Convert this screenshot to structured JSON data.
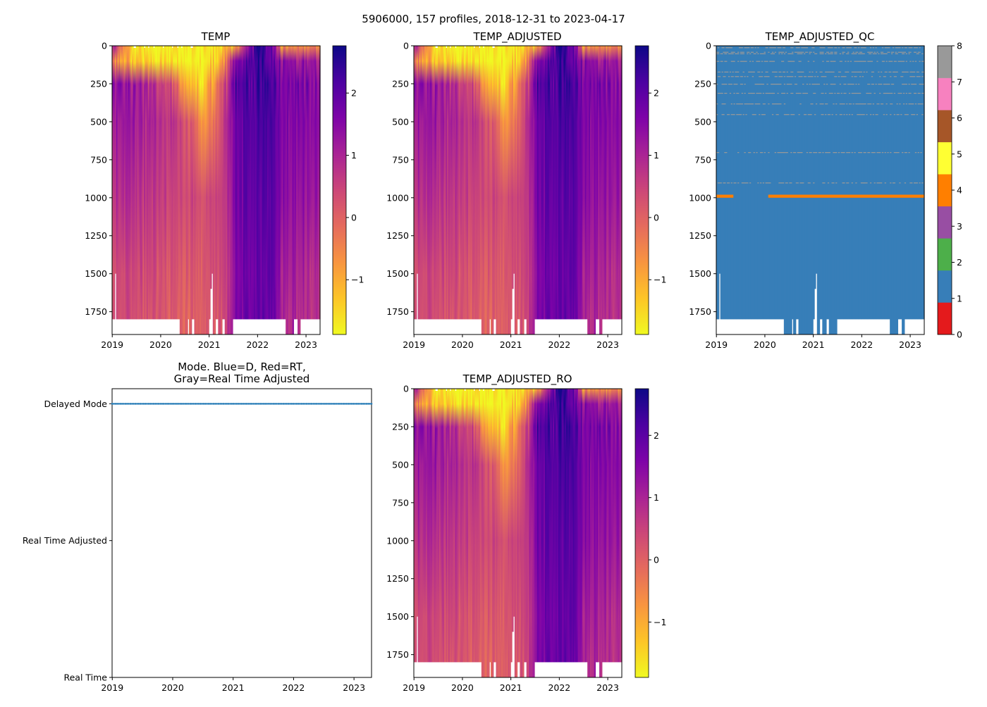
{
  "suptitle": "5906000, 157 profiles, 2018-12-31 to 2023-04-17",
  "chart_data": [
    {
      "type": "heatmap",
      "id": "temp",
      "title": "TEMP",
      "x_range": [
        2018.997,
        2023.29
      ],
      "xticks": [
        "2019",
        "2020",
        "2021",
        "2022",
        "2023"
      ],
      "y_range": [
        1900,
        0
      ],
      "yticks": [
        "0",
        "250",
        "500",
        "750",
        "1000",
        "1250",
        "1500",
        "1750"
      ],
      "colormap": "plasma_r",
      "clim": [
        -1.88,
        2.76
      ],
      "colorbar_ticks": [
        "2",
        "1",
        "0",
        "−1"
      ],
      "colorbar_tick_values": [
        2,
        1,
        0,
        -1
      ]
    },
    {
      "type": "heatmap",
      "id": "temp_adjusted",
      "title": "TEMP_ADJUSTED",
      "x_range": [
        2018.997,
        2023.29
      ],
      "xticks": [
        "2019",
        "2020",
        "2021",
        "2022",
        "2023"
      ],
      "y_range": [
        1900,
        0
      ],
      "yticks": [
        "0",
        "250",
        "500",
        "750",
        "1000",
        "1250",
        "1500",
        "1750"
      ],
      "colormap": "plasma_r",
      "clim": [
        -1.88,
        2.76
      ],
      "colorbar_ticks": [
        "2",
        "1",
        "0",
        "−1"
      ],
      "colorbar_tick_values": [
        2,
        1,
        0,
        -1
      ]
    },
    {
      "type": "heatmap",
      "id": "temp_adjusted_qc",
      "title": "TEMP_ADJUSTED_QC",
      "x_range": [
        2018.997,
        2023.29
      ],
      "xticks": [
        "2019",
        "2020",
        "2021",
        "2022",
        "2023"
      ],
      "y_range": [
        1900,
        0
      ],
      "yticks": [
        "0",
        "250",
        "500",
        "750",
        "1000",
        "1250",
        "1500",
        "1750"
      ],
      "clim": [
        0,
        8
      ],
      "colorbar_ticks": [
        "0",
        "1",
        "2",
        "3",
        "4",
        "5",
        "6",
        "7",
        "8"
      ],
      "qc_colors": [
        "#e41a1c",
        "#377eb8",
        "#4daf4a",
        "#984ea3",
        "#ff7f00",
        "#ffff33",
        "#a65628",
        "#f781bf",
        "#999999"
      ],
      "base_flag": 1,
      "flag4_band": {
        "depth": [
          980,
          1000
        ],
        "date_ranges": [
          [
            2018.997,
            2019.35
          ],
          [
            2020.07,
            2023.29
          ]
        ]
      },
      "flag8_sparse_depths": [
        10,
        40,
        50,
        100,
        170,
        200,
        250,
        310,
        380,
        450,
        700,
        900
      ]
    },
    {
      "type": "scatter",
      "id": "mode",
      "title": "Mode. Blue=D, Red=RT,\nGray=Real Time Adjusted",
      "title_lines": [
        "Mode. Blue=D, Red=RT,",
        "Gray=Real Time Adjusted"
      ],
      "x_range": [
        2018.997,
        2023.29
      ],
      "xticks": [
        "2019",
        "2020",
        "2021",
        "2022",
        "2023"
      ],
      "y_range": [
        0,
        2.11
      ],
      "yticks": [
        "Real Time",
        "Real Time Adjusted",
        "Delayed Mode"
      ],
      "ytick_values": [
        0,
        1,
        2
      ],
      "series": [
        {
          "name": "Delayed Mode",
          "color": "#1f77b4",
          "y": 2,
          "count": 157
        }
      ]
    },
    {
      "type": "heatmap",
      "id": "temp_adjusted_ro",
      "title": "TEMP_ADJUSTED_RO",
      "x_range": [
        2018.997,
        2023.29
      ],
      "xticks": [
        "2019",
        "2020",
        "2021",
        "2022",
        "2023"
      ],
      "y_range": [
        1900,
        0
      ],
      "yticks": [
        "0",
        "250",
        "500",
        "750",
        "1000",
        "1250",
        "1500",
        "1750"
      ],
      "colormap": "plasma_r",
      "clim": [
        -1.89,
        2.75
      ],
      "colorbar_ticks": [
        "2",
        "1",
        "0",
        "−1"
      ],
      "colorbar_tick_values": [
        2,
        1,
        0,
        -1
      ]
    }
  ],
  "profiles": {
    "count": 157,
    "start": 2018.997,
    "end": 2023.29,
    "default_max_depth": 1800,
    "deep_ranges_to_1900": [
      [
        2019.99,
        2020.01
      ],
      [
        2020.39,
        2020.55
      ],
      [
        2020.57,
        2020.63
      ],
      [
        2020.68,
        2020.98
      ],
      [
        2021.06,
        2021.12
      ],
      [
        2021.18,
        2021.28
      ],
      [
        2021.33,
        2021.5
      ],
      [
        2022.58,
        2022.76
      ],
      [
        2022.83,
        2022.9
      ]
    ],
    "short_profiles": [
      {
        "date": 2019.06,
        "max_depth": 1500
      },
      {
        "date": 2021.06,
        "max_depth": 1500
      },
      {
        "date": 2021.04,
        "max_depth": 1600
      }
    ],
    "temp_keyframe_depths": [
      0,
      100,
      250,
      500,
      1000,
      1500,
      1800
    ],
    "temp_keyframes": [
      {
        "t": 2018.997,
        "v": [
          1.3,
          -0.4,
          1.4,
          1.3,
          0.9,
          0.5,
          0.4
        ]
      },
      {
        "t": 2019.4,
        "v": [
          -1.5,
          -1.2,
          1.3,
          1.2,
          0.8,
          0.4,
          0.3
        ]
      },
      {
        "t": 2019.9,
        "v": [
          -1.8,
          -1.5,
          0.8,
          0.9,
          0.6,
          0.3,
          0.2
        ]
      },
      {
        "t": 2020.2,
        "v": [
          -1.8,
          -1.7,
          0.3,
          0.7,
          0.5,
          0.2,
          0.1
        ]
      },
      {
        "t": 2020.6,
        "v": [
          -1.8,
          -1.8,
          -1.3,
          0.2,
          0.4,
          0.1,
          0.0
        ]
      },
      {
        "t": 2020.9,
        "v": [
          -1.8,
          -1.8,
          -1.6,
          -0.8,
          0.3,
          0.1,
          0.0
        ]
      },
      {
        "t": 2021.3,
        "v": [
          -1.5,
          -1.0,
          0.2,
          0.5,
          0.5,
          0.3,
          0.2
        ]
      },
      {
        "t": 2021.55,
        "v": [
          -0.9,
          1.8,
          2.0,
          1.9,
          1.7,
          1.6,
          1.6
        ]
      },
      {
        "t": 2022.0,
        "v": [
          2.6,
          2.2,
          2.2,
          2.2,
          2.0,
          1.9,
          1.9
        ]
      },
      {
        "t": 2022.35,
        "v": [
          1.5,
          2.1,
          2.2,
          2.1,
          2.0,
          1.9,
          1.8
        ]
      },
      {
        "t": 2022.5,
        "v": [
          -0.8,
          1.4,
          1.7,
          1.6,
          1.4,
          1.1,
          1.0
        ]
      },
      {
        "t": 2023.29,
        "v": [
          -0.6,
          1.0,
          1.5,
          1.5,
          1.3,
          0.9,
          0.8
        ]
      }
    ]
  }
}
